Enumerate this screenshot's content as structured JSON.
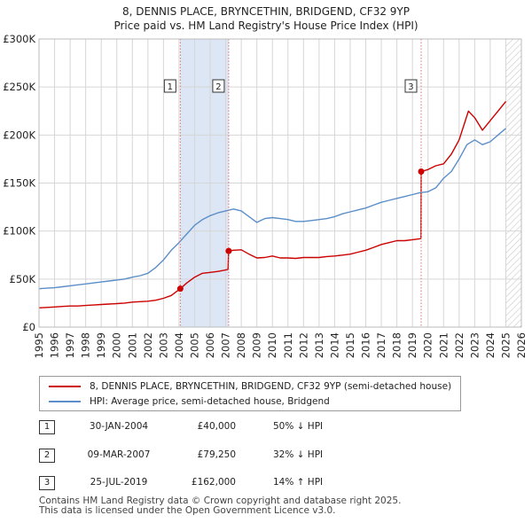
{
  "chart_data": {
    "type": "line",
    "title_line1": "8, DENNIS PLACE, BRYNCETHIN, BRIDGEND, CF32 9YP",
    "title_line2": "Price paid vs. HM Land Registry's House Price Index (HPI)",
    "xlim": [
      1995,
      2026
    ],
    "ylim": [
      0,
      300000
    ],
    "x_ticks": [
      "1995",
      "1996",
      "1997",
      "1998",
      "1999",
      "2000",
      "2001",
      "2002",
      "2003",
      "2004",
      "2005",
      "2006",
      "2007",
      "2008",
      "2009",
      "2010",
      "2011",
      "2012",
      "2013",
      "2014",
      "2015",
      "2016",
      "2017",
      "2018",
      "2019",
      "2020",
      "2021",
      "2022",
      "2023",
      "2024",
      "2025",
      "2026"
    ],
    "y_ticks": [
      {
        "value": 0,
        "label": "£0"
      },
      {
        "value": 50000,
        "label": "£50K"
      },
      {
        "value": 100000,
        "label": "£100K"
      },
      {
        "value": 150000,
        "label": "£150K"
      },
      {
        "value": 200000,
        "label": "£200K"
      },
      {
        "value": 250000,
        "label": "£250K"
      },
      {
        "value": 300000,
        "label": "£300K"
      }
    ],
    "grid": true,
    "shaded_periods": [
      [
        2004.08,
        2007.19
      ]
    ],
    "hatched_after": 2025.0,
    "colors": {
      "property": "#cc0000",
      "hpi": "#5b8ec9",
      "shade": "#dde6f4",
      "sale_vline": "#e07070"
    },
    "series": [
      {
        "name": "property",
        "x": [
          1995.0,
          1995.5,
          1996.0,
          1996.5,
          1997.0,
          1997.5,
          1998.0,
          1998.5,
          1999.0,
          1999.5,
          2000.0,
          2000.5,
          2001.0,
          2001.5,
          2002.0,
          2002.5,
          2003.0,
          2003.5,
          2004.08,
          2004.5,
          2005.0,
          2005.5,
          2006.0,
          2006.5,
          2007.15,
          2007.19,
          2007.5,
          2008.0,
          2008.5,
          2009.0,
          2009.5,
          2010.0,
          2010.5,
          2011.0,
          2011.5,
          2012.0,
          2012.5,
          2013.0,
          2013.5,
          2014.0,
          2014.5,
          2015.0,
          2015.5,
          2016.0,
          2016.5,
          2017.0,
          2017.5,
          2018.0,
          2018.5,
          2019.0,
          2019.5,
          2019.55,
          2019.56,
          2020.0,
          2020.5,
          2021.0,
          2021.5,
          2022.0,
          2022.3,
          2022.6,
          2023.0,
          2023.5,
          2024.0,
          2024.5,
          2025.0
        ],
        "values": [
          20000,
          20500,
          21000,
          21500,
          22000,
          22000,
          22500,
          23000,
          23500,
          24000,
          24500,
          25000,
          26000,
          26500,
          27000,
          28000,
          30000,
          33000,
          40000,
          46000,
          52000,
          56000,
          57000,
          58000,
          60000,
          79250,
          80000,
          80500,
          76000,
          72000,
          72500,
          74000,
          72000,
          72000,
          71500,
          72500,
          72500,
          72500,
          73500,
          74000,
          75000,
          76000,
          78000,
          80000,
          83000,
          86000,
          88000,
          90000,
          90000,
          91000,
          92000,
          92000,
          162000,
          164000,
          168000,
          170000,
          180000,
          195000,
          210000,
          225000,
          218000,
          205000,
          215000,
          225000,
          235000
        ]
      },
      {
        "name": "hpi",
        "x": [
          1995.0,
          1995.5,
          1996.0,
          1996.5,
          1997.0,
          1997.5,
          1998.0,
          1998.5,
          1999.0,
          1999.5,
          2000.0,
          2000.5,
          2001.0,
          2001.5,
          2002.0,
          2002.5,
          2003.0,
          2003.5,
          2004.0,
          2004.5,
          2005.0,
          2005.5,
          2006.0,
          2006.5,
          2007.0,
          2007.5,
          2008.0,
          2008.5,
          2009.0,
          2009.5,
          2010.0,
          2010.5,
          2011.0,
          2011.5,
          2012.0,
          2012.5,
          2013.0,
          2013.5,
          2014.0,
          2014.5,
          2015.0,
          2015.5,
          2016.0,
          2016.5,
          2017.0,
          2017.5,
          2018.0,
          2018.5,
          2019.0,
          2019.5,
          2020.0,
          2020.5,
          2021.0,
          2021.5,
          2022.0,
          2022.5,
          2023.0,
          2023.5,
          2024.0,
          2024.5,
          2025.0
        ],
        "values": [
          40000,
          40500,
          41000,
          42000,
          43000,
          44000,
          45000,
          46000,
          47000,
          48000,
          49000,
          50000,
          52000,
          53500,
          56000,
          62000,
          70000,
          80000,
          88000,
          97000,
          106000,
          112000,
          116000,
          119000,
          121000,
          123000,
          121000,
          115000,
          109000,
          113000,
          114000,
          113000,
          112000,
          110000,
          110000,
          111000,
          112000,
          113000,
          115000,
          118000,
          120000,
          122000,
          124000,
          127000,
          130000,
          132000,
          134000,
          136000,
          138000,
          140000,
          141000,
          145000,
          155000,
          162000,
          175000,
          190000,
          195000,
          190000,
          193000,
          200000,
          207000
        ]
      }
    ],
    "sales": [
      {
        "num": "1",
        "x": 2004.08,
        "price": 40000
      },
      {
        "num": "2",
        "x": 2007.19,
        "price": 79250
      },
      {
        "num": "3",
        "x": 2019.56,
        "price": 162000
      }
    ]
  },
  "legend": {
    "property_label": "8, DENNIS PLACE, BRYNCETHIN, BRIDGEND, CF32 9YP (semi-detached house)",
    "hpi_label": "HPI: Average price, semi-detached house, Bridgend"
  },
  "sales_table": [
    {
      "num": "1",
      "date": "30-JAN-2004",
      "price": "£40,000",
      "hpi": "50% ↓ HPI"
    },
    {
      "num": "2",
      "date": "09-MAR-2007",
      "price": "£79,250",
      "hpi": "32% ↓ HPI"
    },
    {
      "num": "3",
      "date": "25-JUL-2019",
      "price": "£162,000",
      "hpi": "14% ↑ HPI"
    }
  ],
  "footer": {
    "line1": "Contains HM Land Registry data © Crown copyright and database right 2025.",
    "line2": "This data is licensed under the Open Government Licence v3.0."
  }
}
